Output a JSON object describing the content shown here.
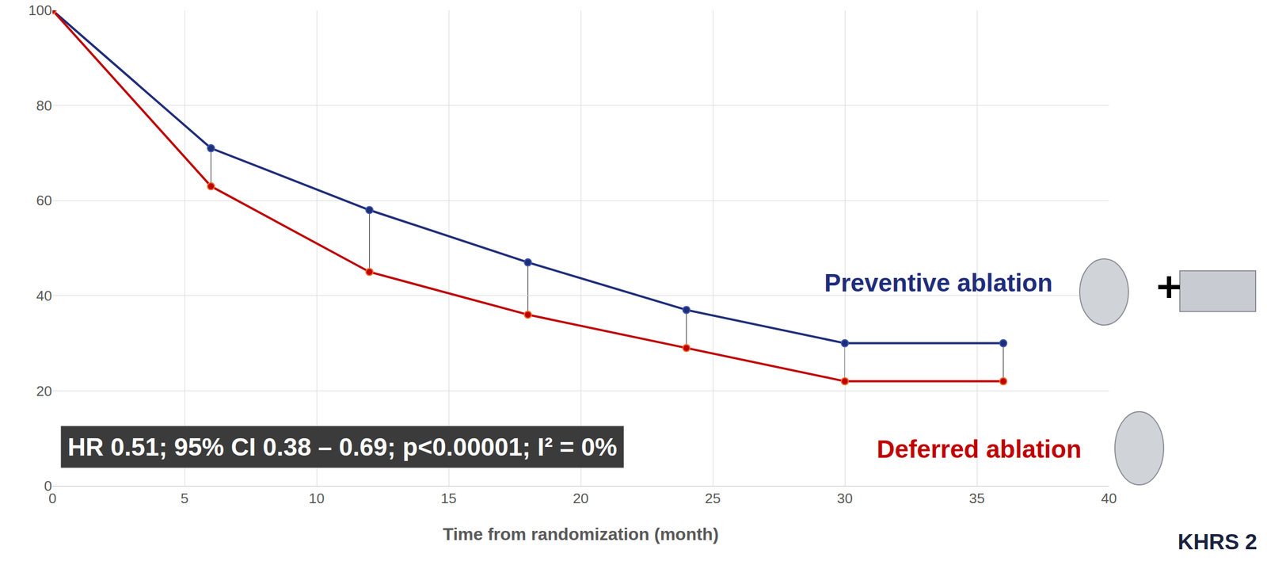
{
  "chart_data": {
    "type": "line",
    "x_label": "Time from randomization (month)",
    "x": [
      0,
      6,
      12,
      18,
      24,
      30,
      36
    ],
    "series": [
      {
        "name": "Preventive ablation",
        "color": "#1f2d7a",
        "marker": "circle",
        "values": [
          100,
          71,
          58,
          47,
          37,
          30,
          30
        ]
      },
      {
        "name": "Deferred ablation",
        "color": "#c00000",
        "marker": "circle",
        "values": [
          100,
          63,
          45,
          36,
          29,
          22,
          22
        ]
      }
    ],
    "xlim": [
      0,
      40
    ],
    "ylim": [
      0,
      100
    ],
    "xticks": [
      0,
      5,
      10,
      15,
      20,
      25,
      30,
      35,
      40
    ],
    "yticks": [
      0,
      20,
      40,
      60,
      80,
      100
    ],
    "grid": true,
    "annotations": [
      "HR 0.51; 95% CI 0.38 – 0.69; p<0.00001; I² = 0%",
      "KHRS 2"
    ]
  }
}
